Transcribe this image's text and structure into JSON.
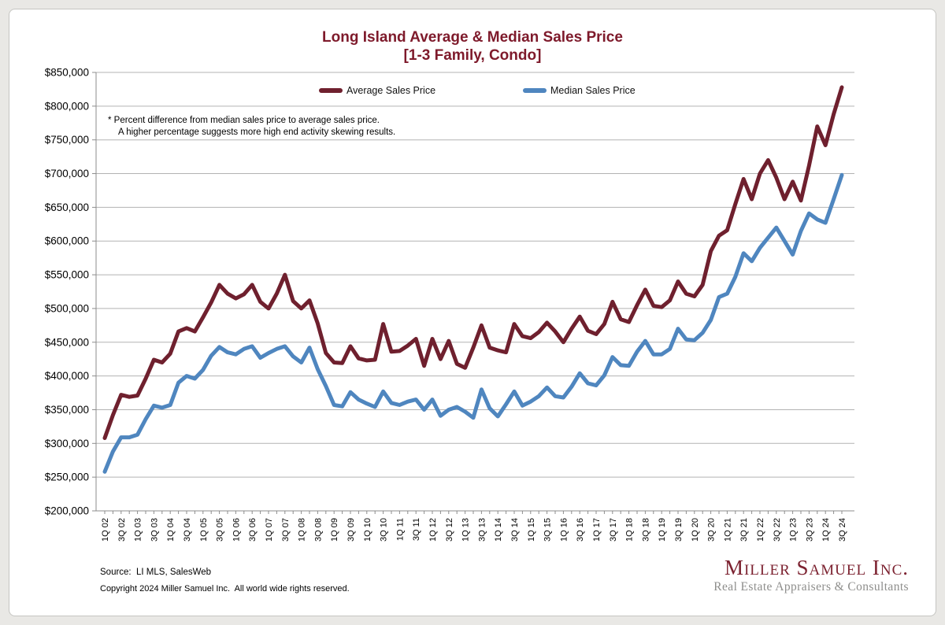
{
  "title": {
    "line1": "Long Island Average & Median Sales Price",
    "line2": "[1-3 Family, Condo]"
  },
  "annotation": {
    "line1": "*  Percent difference from median sales price to average sales price.",
    "line2": "A higher percentage suggests more high end activity skewing results."
  },
  "footer": {
    "source": "Source:  LI MLS, SalesWeb",
    "copyright": "Copyright 2024 Miller Samuel Inc.  All world wide rights reserved."
  },
  "logo": {
    "name": "Miller Samuel Inc.",
    "tagline": "Real Estate Appraisers & Consultants"
  },
  "colors": {
    "maroon_line": "#6f202e",
    "blue_line": "#4f86bf",
    "title_maroon": "#7e1a2b",
    "grid": "#b3b3b3",
    "axis": "#8c8c8c",
    "tick_text": "#000000",
    "page_bg": "#e9e8e5",
    "card_bg": "#ffffff"
  },
  "chart_data": {
    "type": "line",
    "title": "Long Island Average & Median Sales Price",
    "subtitle": "[1-3 Family, Condo]",
    "grid": "horizontal",
    "legend_position": "top-inside",
    "ylim": [
      200000,
      850000
    ],
    "y_tick_step": 50000,
    "y_tick_prefix": "$",
    "x_tick_labels": [
      "1Q 02",
      "3Q 02",
      "1Q 03",
      "3Q 03",
      "1Q 04",
      "3Q 04",
      "1Q 05",
      "3Q 05",
      "1Q 06",
      "3Q 06",
      "1Q 07",
      "3Q 07",
      "1Q 08",
      "3Q 08",
      "1Q 09",
      "3Q 09",
      "1Q 10",
      "3Q 10",
      "1Q 11",
      "3Q 11",
      "1Q 12",
      "3Q 12",
      "1Q 13",
      "3Q 13",
      "1Q 14",
      "3Q 14",
      "1Q 15",
      "3Q 15",
      "1Q 16",
      "3Q 16",
      "1Q 17",
      "3Q 17",
      "1Q 18",
      "3Q 18",
      "1Q 19",
      "3Q 19",
      "1Q 20",
      "3Q 20",
      "1Q 21",
      "3Q 21",
      "1Q 22",
      "3Q 22",
      "1Q 23",
      "3Q 23",
      "1Q 24",
      "3Q 24"
    ],
    "x_label_every_n_points": 2,
    "points_per_year": 4,
    "series": [
      {
        "name": "Average Sales Price",
        "color": "#6f202e",
        "values": [
          308000,
          342000,
          372000,
          369000,
          371000,
          396000,
          424000,
          420000,
          433000,
          466000,
          471000,
          466000,
          487000,
          509000,
          535000,
          522000,
          515000,
          521000,
          535000,
          510000,
          500000,
          522000,
          550000,
          511000,
          500000,
          512000,
          478000,
          434000,
          420000,
          419000,
          444000,
          426000,
          423000,
          424000,
          477000,
          436000,
          437000,
          445000,
          455000,
          415000,
          455000,
          425000,
          452000,
          418000,
          412000,
          442000,
          475000,
          442000,
          438000,
          435000,
          477000,
          459000,
          456000,
          465000,
          479000,
          466000,
          450000,
          470000,
          488000,
          467000,
          462000,
          477000,
          510000,
          484000,
          480000,
          505000,
          528000,
          504000,
          502000,
          512000,
          540000,
          522000,
          518000,
          535000,
          585000,
          608000,
          616000,
          655000,
          692000,
          662000,
          700000,
          720000,
          694000,
          662000,
          688000,
          660000,
          712000,
          770000,
          742000,
          788000,
          828000
        ]
      },
      {
        "name": "Median Sales Price",
        "color": "#4f86bf",
        "values": [
          258000,
          288000,
          309000,
          309000,
          313000,
          336000,
          356000,
          353000,
          357000,
          390000,
          400000,
          396000,
          409000,
          430000,
          443000,
          435000,
          432000,
          440000,
          444000,
          427000,
          434000,
          440000,
          444000,
          429000,
          420000,
          442000,
          410000,
          385000,
          357000,
          355000,
          376000,
          365000,
          359000,
          354000,
          377000,
          360000,
          357000,
          362000,
          365000,
          350000,
          365000,
          341000,
          350000,
          354000,
          347000,
          338000,
          380000,
          352000,
          340000,
          358000,
          377000,
          356000,
          362000,
          370000,
          383000,
          370000,
          368000,
          384000,
          404000,
          389000,
          386000,
          401000,
          428000,
          416000,
          415000,
          436000,
          452000,
          432000,
          432000,
          440000,
          470000,
          454000,
          453000,
          464000,
          483000,
          517000,
          522000,
          547000,
          582000,
          570000,
          590000,
          605000,
          620000,
          600000,
          580000,
          615000,
          641000,
          632000,
          627000,
          662000,
          698000
        ]
      }
    ]
  }
}
